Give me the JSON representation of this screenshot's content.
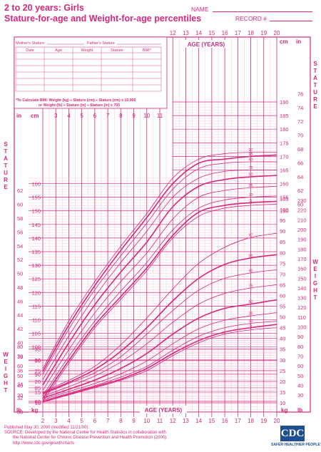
{
  "header": {
    "title_line1": "2 to 20 years: Girls",
    "title_line2": "Stature-for-age and Weight-for-age percentiles",
    "name_label": "NAME",
    "record_label": "RECORD #"
  },
  "form": {
    "mothers_stature": "Mother's Stature",
    "fathers_stature": "Father's Stature",
    "columns": [
      "Date",
      "Age",
      "Weight",
      "Stature",
      "BMI*"
    ],
    "bmi_note_line1": "*To Calculate BMI: Weight (kg) ÷ Stature (cm) ÷ Stature (cm) x 10,000",
    "bmi_note_line2": "or Weight (lb) ÷ Stature (in) ÷ Stature (in) x 703"
  },
  "labels": {
    "age_years": "AGE (YEARS)",
    "stature": "STATURE",
    "weight": "WEIGHT",
    "cm": "cm",
    "in": "in",
    "kg": "kg",
    "lb": "lb"
  },
  "footer": {
    "line1": "Published May 30, 2000 (modified 11/21/00).",
    "line2": "SOURCE: Developed by the National Center for Health Statistics in collaboration with",
    "line3": "the National Center for Chronic Disease Prevention and Health Promotion (2000).",
    "line4": "http://www.cdc.gov/growthcharts"
  },
  "logo": {
    "text": "CDC",
    "tagline": "SAFER·HEALTHIER·PEOPLE™"
  },
  "colors": {
    "accent": "#d6277b",
    "grid_minor": "#f2b8d0",
    "logo_blue": "#1d4f91"
  },
  "chart_data": [
    {
      "type": "line",
      "title": "Stature-for-age percentiles",
      "xlabel": "AGE (YEARS)",
      "ylabel": "Stature (cm)",
      "x": [
        2,
        4,
        6,
        8,
        10,
        12,
        14,
        16,
        18,
        20
      ],
      "xlim": [
        2,
        20
      ],
      "ylim": [
        80,
        190
      ],
      "series": [
        {
          "name": "97",
          "values": [
            92,
            109.5,
            124,
            137,
            149,
            162,
            169,
            171,
            171.5,
            171.5
          ]
        },
        {
          "name": "95",
          "values": [
            91,
            108,
            122.5,
            135.5,
            147.5,
            160,
            167.5,
            169,
            170,
            170.5
          ]
        },
        {
          "name": "90",
          "values": [
            90,
            106.5,
            121,
            133.5,
            145.5,
            158,
            165.5,
            167.5,
            168,
            168
          ]
        },
        {
          "name": "75",
          "values": [
            88,
            104,
            118.5,
            131,
            142.5,
            155,
            162,
            164.5,
            165,
            165
          ]
        },
        {
          "name": "50",
          "values": [
            86,
            101.5,
            115.5,
            127.5,
            138.5,
            151.5,
            159,
            161.5,
            162.5,
            163
          ]
        },
        {
          "name": "25",
          "values": [
            84,
            99,
            112.5,
            124,
            134.5,
            147,
            155,
            157.5,
            158.5,
            159
          ]
        },
        {
          "name": "10",
          "values": [
            82,
            96.5,
            109.5,
            120.5,
            131,
            143,
            151,
            154,
            155,
            155.5
          ]
        },
        {
          "name": "5",
          "values": [
            81,
            95,
            108,
            118.5,
            129,
            141,
            149.5,
            152,
            153,
            153.5
          ]
        },
        {
          "name": "3",
          "values": [
            80,
            94,
            107,
            117.5,
            128,
            140,
            148,
            151,
            152,
            152.5
          ]
        }
      ],
      "tick_labels_cm": [
        "80",
        "85",
        "90",
        "95",
        "100",
        "105",
        "110",
        "115",
        "120",
        "125",
        "130",
        "135",
        "140",
        "145",
        "150",
        "155",
        "160",
        "165",
        "170",
        "175",
        "180",
        "185",
        "190"
      ],
      "tick_labels_in": [
        "30",
        "32",
        "34",
        "36",
        "38",
        "40",
        "42",
        "44",
        "46",
        "48",
        "50",
        "52",
        "54",
        "56",
        "58",
        "60",
        "62",
        "64",
        "66",
        "68",
        "70",
        "72",
        "74",
        "76"
      ]
    },
    {
      "type": "line",
      "title": "Weight-for-age percentiles",
      "xlabel": "AGE (YEARS)",
      "ylabel": "Weight (kg)",
      "x": [
        2,
        4,
        6,
        8,
        10,
        12,
        14,
        16,
        18,
        20
      ],
      "xlim": [
        2,
        20
      ],
      "ylim": [
        10,
        105
      ],
      "series": [
        {
          "name": "97",
          "values": [
            15,
            20.5,
            27,
            37,
            49.5,
            63,
            75,
            82.5,
            87,
            89
          ]
        },
        {
          "name": "95",
          "values": [
            14.5,
            19.5,
            25.5,
            34,
            45,
            57.5,
            68,
            74.5,
            77.5,
            79
          ]
        },
        {
          "name": "90",
          "values": [
            14,
            19,
            24,
            31.5,
            42,
            53,
            62.5,
            68,
            70.5,
            72
          ]
        },
        {
          "name": "75",
          "values": [
            13,
            17.5,
            22.5,
            29,
            37.5,
            47.5,
            56,
            61,
            63.5,
            65
          ]
        },
        {
          "name": "50",
          "values": [
            12.2,
            16.3,
            20.6,
            26,
            33,
            42,
            49.5,
            54,
            56,
            58
          ]
        },
        {
          "name": "25",
          "values": [
            11.5,
            15.3,
            19,
            23.5,
            29.5,
            37.5,
            44.5,
            48.5,
            50.5,
            52
          ]
        },
        {
          "name": "10",
          "values": [
            11,
            14.5,
            18,
            22,
            27,
            34.5,
            41,
            45,
            47,
            48
          ]
        },
        {
          "name": "5",
          "values": [
            10.5,
            14,
            17.5,
            21,
            26,
            33,
            39,
            43,
            45,
            46.5
          ]
        },
        {
          "name": "3",
          "values": [
            10.3,
            13.7,
            17,
            20.5,
            25,
            32,
            38,
            42,
            44,
            45
          ]
        }
      ],
      "tick_labels_kg": [
        "10",
        "15",
        "20",
        "25",
        "30",
        "35",
        "40",
        "45",
        "50",
        "55",
        "60",
        "65",
        "70",
        "75",
        "80",
        "85",
        "90",
        "95",
        "100",
        "105"
      ],
      "tick_labels_lb": [
        "30",
        "40",
        "50",
        "60",
        "70",
        "80",
        "90",
        "100",
        "110",
        "120",
        "130",
        "140",
        "150",
        "160",
        "170",
        "180",
        "190",
        "200",
        "210",
        "220",
        "230"
      ]
    }
  ],
  "age_ticks_top": [
    "12",
    "13",
    "14",
    "15",
    "16",
    "17",
    "18",
    "19",
    "20"
  ],
  "age_ticks_mid": [
    "3",
    "4",
    "5",
    "6",
    "7",
    "8",
    "9",
    "10",
    "11"
  ],
  "age_ticks_bottom": [
    "2",
    "3",
    "4",
    "5",
    "6",
    "7",
    "8",
    "9",
    "10",
    "11",
    "12",
    "13",
    "14",
    "15",
    "16",
    "17",
    "18",
    "19",
    "20"
  ]
}
